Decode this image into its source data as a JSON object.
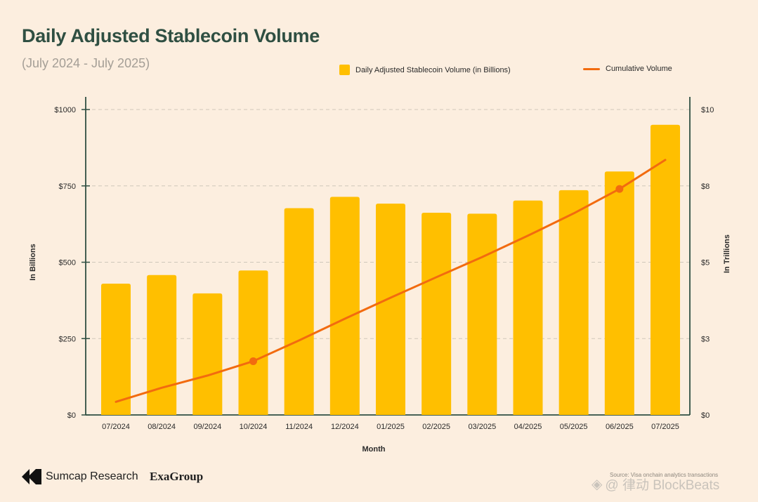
{
  "header": {
    "title": "Daily Adjusted Stablecoin Volume",
    "subtitle": "(July 2024 - July 2025)"
  },
  "legend": {
    "bar_label": "Daily Adjusted Stablecoin Volume (in Billions)",
    "line_label": "Cumulative Volume"
  },
  "footer": {
    "brand1": "Sumcap Research",
    "brand2": "ExaGroup",
    "source": "Source: Visa onchain analytics transactions",
    "watermark": "@ 律动 BlockBeats"
  },
  "colors": {
    "bar": "#FFBF00",
    "line": "#F26B0F",
    "axis": "#2F4F42",
    "grid": "#CFC7BA"
  },
  "chart_data": {
    "type": "bar",
    "title": "Daily Adjusted Stablecoin Volume",
    "subtitle": "(July 2024 - July 2025)",
    "xlabel": "Month",
    "ylabel": "In Billions",
    "y2label": "In Trillions",
    "categories": [
      "07/2024",
      "08/2024",
      "09/2024",
      "10/2024",
      "11/2024",
      "12/2024",
      "01/2025",
      "02/2025",
      "03/2025",
      "04/2025",
      "05/2025",
      "06/2025",
      "07/2025"
    ],
    "ylim": [
      0,
      1000
    ],
    "y2lim": [
      0,
      10
    ],
    "yticks": [
      "$0",
      "$250",
      "$500",
      "$750",
      "$1000"
    ],
    "y2ticks": [
      "$0",
      "$3",
      "$5",
      "$8",
      "$10"
    ],
    "grid": true,
    "legend_position": "top",
    "series": [
      {
        "name": "Daily Adjusted Stablecoin Volume (in Billions)",
        "type": "bar",
        "axis": "left",
        "values": [
          430,
          458,
          398,
          473,
          677,
          714,
          692,
          662,
          659,
          702,
          736,
          797,
          950
        ]
      },
      {
        "name": "Cumulative Volume",
        "type": "line",
        "axis": "right",
        "values": [
          0.43,
          0.89,
          1.29,
          1.76,
          2.44,
          3.15,
          3.84,
          4.51,
          5.17,
          5.87,
          6.6,
          7.4,
          8.35
        ],
        "markers": [
          3,
          11
        ]
      }
    ]
  }
}
